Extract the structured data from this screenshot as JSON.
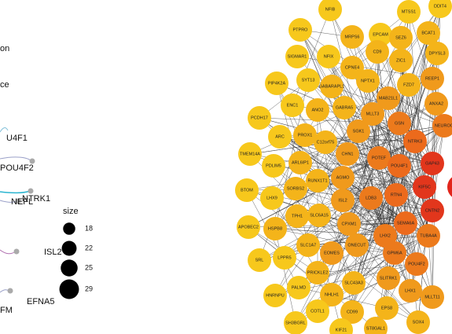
{
  "left_panel": {
    "labels": [
      "on",
      "ce",
      "U4F1",
      "POU4F2",
      "NEFL",
      "NTRK1",
      "ISL2",
      "EFNA5",
      "FM"
    ]
  },
  "size_legend": {
    "title": "size",
    "values": [
      18,
      22,
      25,
      29
    ]
  },
  "network": {
    "nodes": [
      {
        "label": "NFIB",
        "color": "#f7c81c"
      },
      {
        "label": "EPCAM",
        "color": "#f7c81c"
      },
      {
        "label": "MTSS1",
        "color": "#f7c81c"
      },
      {
        "label": "DDIT4",
        "color": "#f7c81c"
      },
      {
        "label": "PTPRO",
        "color": "#f7c81c"
      },
      {
        "label": "MRPS6",
        "color": "#f4b41a"
      },
      {
        "label": "SEZ6",
        "color": "#f4b41a"
      },
      {
        "label": "BCAT1",
        "color": "#f4b41a"
      },
      {
        "label": "NFIX",
        "color": "#f7c81c"
      },
      {
        "label": "CD9",
        "color": "#f4b41a"
      },
      {
        "label": "ZIC1",
        "color": "#f4b41a"
      },
      {
        "label": "SIGMAR1",
        "color": "#f7c81c"
      },
      {
        "label": "DPYSL3",
        "color": "#f4b41a"
      },
      {
        "label": "SYT13",
        "color": "#f7c81c"
      },
      {
        "label": "CPNE4",
        "color": "#f4b41a"
      },
      {
        "label": "NPTX1",
        "color": "#f4b41a"
      },
      {
        "label": "FZD7",
        "color": "#f4b41a"
      },
      {
        "label": "REEP1",
        "color": "#f09a1c"
      },
      {
        "label": "PIP4K2A",
        "color": "#f7c81c"
      },
      {
        "label": "GABARAPL1",
        "color": "#f4b41a"
      },
      {
        "label": "MAB21L1",
        "color": "#f09a1c"
      },
      {
        "label": "ANXA2",
        "color": "#f09a1c"
      },
      {
        "label": "PCDH17",
        "color": "#f7c81c"
      },
      {
        "label": "ENC1",
        "color": "#f7c81c"
      },
      {
        "label": "ANO2",
        "color": "#f4b41a"
      },
      {
        "label": "GABRA5",
        "color": "#f4b41a"
      },
      {
        "label": "MLLT3",
        "color": "#f09a1c"
      },
      {
        "label": "NEUROG",
        "color": "#ec7a1c"
      },
      {
        "label": "GSN",
        "color": "#ec7a1c"
      },
      {
        "label": "ARC",
        "color": "#f7c81c"
      },
      {
        "label": "PROX1",
        "color": "#f4b41a"
      },
      {
        "label": "C12orf75",
        "color": "#f4b41a"
      },
      {
        "label": "SGK1",
        "color": "#f09a1c"
      },
      {
        "label": "NTRK3",
        "color": "#ec6a1c"
      },
      {
        "label": "TMEM14A",
        "color": "#f7c81c"
      },
      {
        "label": "ARL6IP1",
        "color": "#f4b41a"
      },
      {
        "label": "CHN1",
        "color": "#f09a1c"
      },
      {
        "label": "POTEF",
        "color": "#ec7a1c"
      },
      {
        "label": "POU4F1",
        "color": "#ec6a1c"
      },
      {
        "label": "GAP43",
        "color": "#e2361c"
      },
      {
        "label": "PDLIM5",
        "color": "#f7c81c"
      },
      {
        "label": "RUNX1T1",
        "color": "#f4b41a"
      },
      {
        "label": "AGMO",
        "color": "#f09a1c"
      },
      {
        "label": "KIF5C",
        "color": "#e2361c"
      },
      {
        "label": "BTOM",
        "color": "#f7c81c"
      },
      {
        "label": "LHX9",
        "color": "#f7c81c"
      },
      {
        "label": "SORBS2",
        "color": "#f4b41a"
      },
      {
        "label": "ISL2",
        "color": "#f09a1c"
      },
      {
        "label": "LDB3",
        "color": "#ec7a1c"
      },
      {
        "label": "RTN4",
        "color": "#ec6a1c"
      },
      {
        "label": "CNTN2",
        "color": "#e2361c"
      },
      {
        "label": "TPH1",
        "color": "#f4b41a"
      },
      {
        "label": "SLC6A15",
        "color": "#f4b41a"
      },
      {
        "label": "SEMA6A",
        "color": "#ec6a1c"
      },
      {
        "label": "APOBEC2",
        "color": "#f7c81c"
      },
      {
        "label": "HSPB8",
        "color": "#f4b41a"
      },
      {
        "label": "CPXM1",
        "color": "#f09a1c"
      },
      {
        "label": "LHX2",
        "color": "#ec7a1c"
      },
      {
        "label": "TUBA4A",
        "color": "#ec7a1c"
      },
      {
        "label": "SLC1A7",
        "color": "#f4b41a"
      },
      {
        "label": "EOMES",
        "color": "#f09a1c"
      },
      {
        "label": "ONECUT",
        "color": "#f09a1c"
      },
      {
        "label": "SRL",
        "color": "#f7c81c"
      },
      {
        "label": "LPPR5",
        "color": "#f7c81c"
      },
      {
        "label": "GPM6A",
        "color": "#ec7a1c"
      },
      {
        "label": "POU4F2",
        "color": "#ec7a1c"
      },
      {
        "label": "PRICKLE2",
        "color": "#f4b41a"
      },
      {
        "label": "SLITRK1",
        "color": "#f09a1c"
      },
      {
        "label": "HNRNPU",
        "color": "#f7c81c"
      },
      {
        "label": "PALMD",
        "color": "#f7c81c"
      },
      {
        "label": "NHLH1",
        "color": "#f4b41a"
      },
      {
        "label": "SLC43A3",
        "color": "#f4b41a"
      },
      {
        "label": "LHX1",
        "color": "#f09a1c"
      },
      {
        "label": "MLLT11",
        "color": "#f09a1c"
      },
      {
        "label": "COTL1",
        "color": "#f7c81c"
      },
      {
        "label": "CD99",
        "color": "#f4b41a"
      },
      {
        "label": "EPS8",
        "color": "#f4b41a"
      },
      {
        "label": "SOX4",
        "color": "#f4b41a"
      },
      {
        "label": "SH3BGRL",
        "color": "#f7c81c"
      },
      {
        "label": "ST8GAL1",
        "color": "#f4b41a"
      },
      {
        "label": "KIF21",
        "color": "#f7c81c"
      }
    ]
  }
}
